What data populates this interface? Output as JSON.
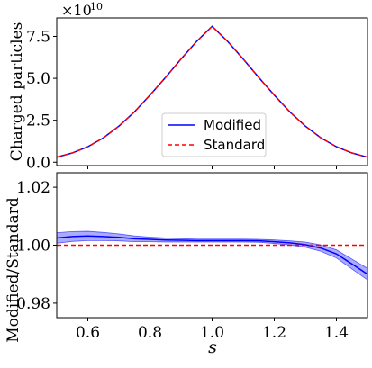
{
  "chart_data": [
    {
      "type": "line",
      "ylabel": "Charged particles",
      "offset_label": "×10",
      "offset_exponent": "10",
      "ylim": [
        -0.2,
        8.6
      ],
      "xlim": [
        0.5,
        1.5
      ],
      "yticks": [
        0.0,
        2.5,
        5.0,
        7.5
      ],
      "ytick_labels": [
        "0.0",
        "2.5",
        "5.0",
        "7.5"
      ],
      "xticks": [
        0.6,
        0.8,
        1.0,
        1.2,
        1.4
      ],
      "legend": {
        "placement": "lower-center",
        "entries": [
          "Modified",
          "Standard"
        ]
      },
      "series": [
        {
          "name": "Modified",
          "color": "#0000ff",
          "style": "solid",
          "x": [
            0.5,
            0.55,
            0.6,
            0.65,
            0.7,
            0.75,
            0.8,
            0.85,
            0.9,
            0.95,
            1.0,
            1.05,
            1.1,
            1.15,
            1.2,
            1.25,
            1.3,
            1.35,
            1.4,
            1.45,
            1.5
          ],
          "y": [
            0.3,
            0.55,
            0.92,
            1.45,
            2.15,
            3.0,
            4.0,
            5.05,
            6.15,
            7.2,
            8.1,
            7.2,
            6.15,
            5.05,
            4.0,
            3.0,
            2.15,
            1.45,
            0.92,
            0.55,
            0.3
          ]
        },
        {
          "name": "Standard",
          "color": "#ff0000",
          "style": "dashed",
          "x": [
            0.5,
            0.55,
            0.6,
            0.65,
            0.7,
            0.75,
            0.8,
            0.85,
            0.9,
            0.95,
            1.0,
            1.05,
            1.1,
            1.15,
            1.2,
            1.25,
            1.3,
            1.35,
            1.4,
            1.45,
            1.5
          ],
          "y": [
            0.3,
            0.55,
            0.92,
            1.45,
            2.15,
            3.0,
            4.0,
            5.05,
            6.15,
            7.2,
            8.1,
            7.2,
            6.15,
            5.05,
            4.0,
            3.0,
            2.15,
            1.45,
            0.92,
            0.55,
            0.3
          ]
        }
      ]
    },
    {
      "type": "line",
      "xlabel": "s",
      "ylabel": "Modified/Standard",
      "xlim": [
        0.5,
        1.5
      ],
      "ylim": [
        0.975,
        1.025
      ],
      "xticks": [
        0.6,
        0.8,
        1.0,
        1.2,
        1.4
      ],
      "xtick_labels": [
        "0.6",
        "0.8",
        "1.0",
        "1.2",
        "1.4"
      ],
      "yticks": [
        0.98,
        1.0,
        1.02
      ],
      "ytick_labels": [
        "0.98",
        "1.00",
        "1.02"
      ],
      "series": [
        {
          "name": "Modified",
          "color": "#0000ff",
          "band_color": "#6666ff",
          "style": "solid",
          "x": [
            0.5,
            0.55,
            0.6,
            0.65,
            0.7,
            0.75,
            0.8,
            0.85,
            0.9,
            0.95,
            1.0,
            1.05,
            1.1,
            1.15,
            1.2,
            1.25,
            1.3,
            1.35,
            1.4,
            1.45,
            1.5
          ],
          "y": [
            1.0025,
            1.003,
            1.0032,
            1.003,
            1.0027,
            1.0022,
            1.002,
            1.0018,
            1.0017,
            1.0016,
            1.0016,
            1.0016,
            1.0016,
            1.0015,
            1.0012,
            1.0008,
            1.0002,
            0.999,
            0.997,
            0.9935,
            0.99
          ],
          "err": [
            0.0018,
            0.0017,
            0.0016,
            0.0014,
            0.0012,
            0.001,
            0.0008,
            0.0007,
            0.0006,
            0.0005,
            0.0005,
            0.0005,
            0.0005,
            0.0005,
            0.0006,
            0.0007,
            0.0009,
            0.0011,
            0.0014,
            0.0017,
            0.002
          ]
        },
        {
          "name": "Standard",
          "color": "#ff0000",
          "style": "dashed",
          "x": [
            0.5,
            1.5
          ],
          "y": [
            1.0,
            1.0
          ]
        }
      ]
    }
  ]
}
